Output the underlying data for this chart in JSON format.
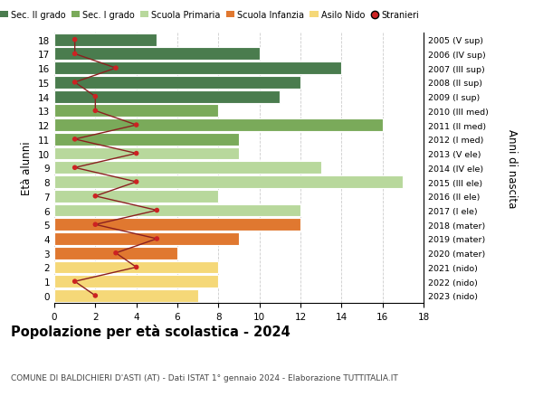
{
  "ages": [
    18,
    17,
    16,
    15,
    14,
    13,
    12,
    11,
    10,
    9,
    8,
    7,
    6,
    5,
    4,
    3,
    2,
    1,
    0
  ],
  "right_labels": [
    "2005 (V sup)",
    "2006 (IV sup)",
    "2007 (III sup)",
    "2008 (II sup)",
    "2009 (I sup)",
    "2010 (III med)",
    "2011 (II med)",
    "2012 (I med)",
    "2013 (V ele)",
    "2014 (IV ele)",
    "2015 (III ele)",
    "2016 (II ele)",
    "2017 (I ele)",
    "2018 (mater)",
    "2019 (mater)",
    "2020 (mater)",
    "2021 (nido)",
    "2022 (nido)",
    "2023 (nido)"
  ],
  "bar_values": [
    5,
    10,
    14,
    12,
    11,
    8,
    16,
    9,
    9,
    13,
    17,
    8,
    12,
    12,
    9,
    6,
    8,
    8,
    7
  ],
  "bar_colors": [
    "#4a7c4e",
    "#4a7c4e",
    "#4a7c4e",
    "#4a7c4e",
    "#4a7c4e",
    "#7aaa5a",
    "#7aaa5a",
    "#7aaa5a",
    "#b8d89c",
    "#b8d89c",
    "#b8d89c",
    "#b8d89c",
    "#b8d89c",
    "#e07830",
    "#e07830",
    "#e07830",
    "#f5d878",
    "#f5d878",
    "#f5d878"
  ],
  "stranieri_values": [
    1,
    1,
    3,
    1,
    2,
    2,
    4,
    1,
    4,
    1,
    4,
    2,
    5,
    2,
    5,
    3,
    4,
    1,
    2
  ],
  "legend_labels": [
    "Sec. II grado",
    "Sec. I grado",
    "Scuola Primaria",
    "Scuola Infanzia",
    "Asilo Nido",
    "Stranieri"
  ],
  "legend_colors": [
    "#4a7c4e",
    "#7aaa5a",
    "#b8d89c",
    "#e07830",
    "#f5d878",
    "#cc2222"
  ],
  "ylabel": "Età alunni",
  "right_ylabel": "Anni di nascita",
  "title": "Popolazione per età scolastica - 2024",
  "subtitle": "COMUNE DI BALDICHIERI D'ASTI (AT) - Dati ISTAT 1° gennaio 2024 - Elaborazione TUTTITALIA.IT",
  "stranieri_line_color": "#8b2020",
  "stranieri_dot_color": "#cc2222",
  "bg_color": "#ffffff",
  "grid_color": "#cccccc"
}
